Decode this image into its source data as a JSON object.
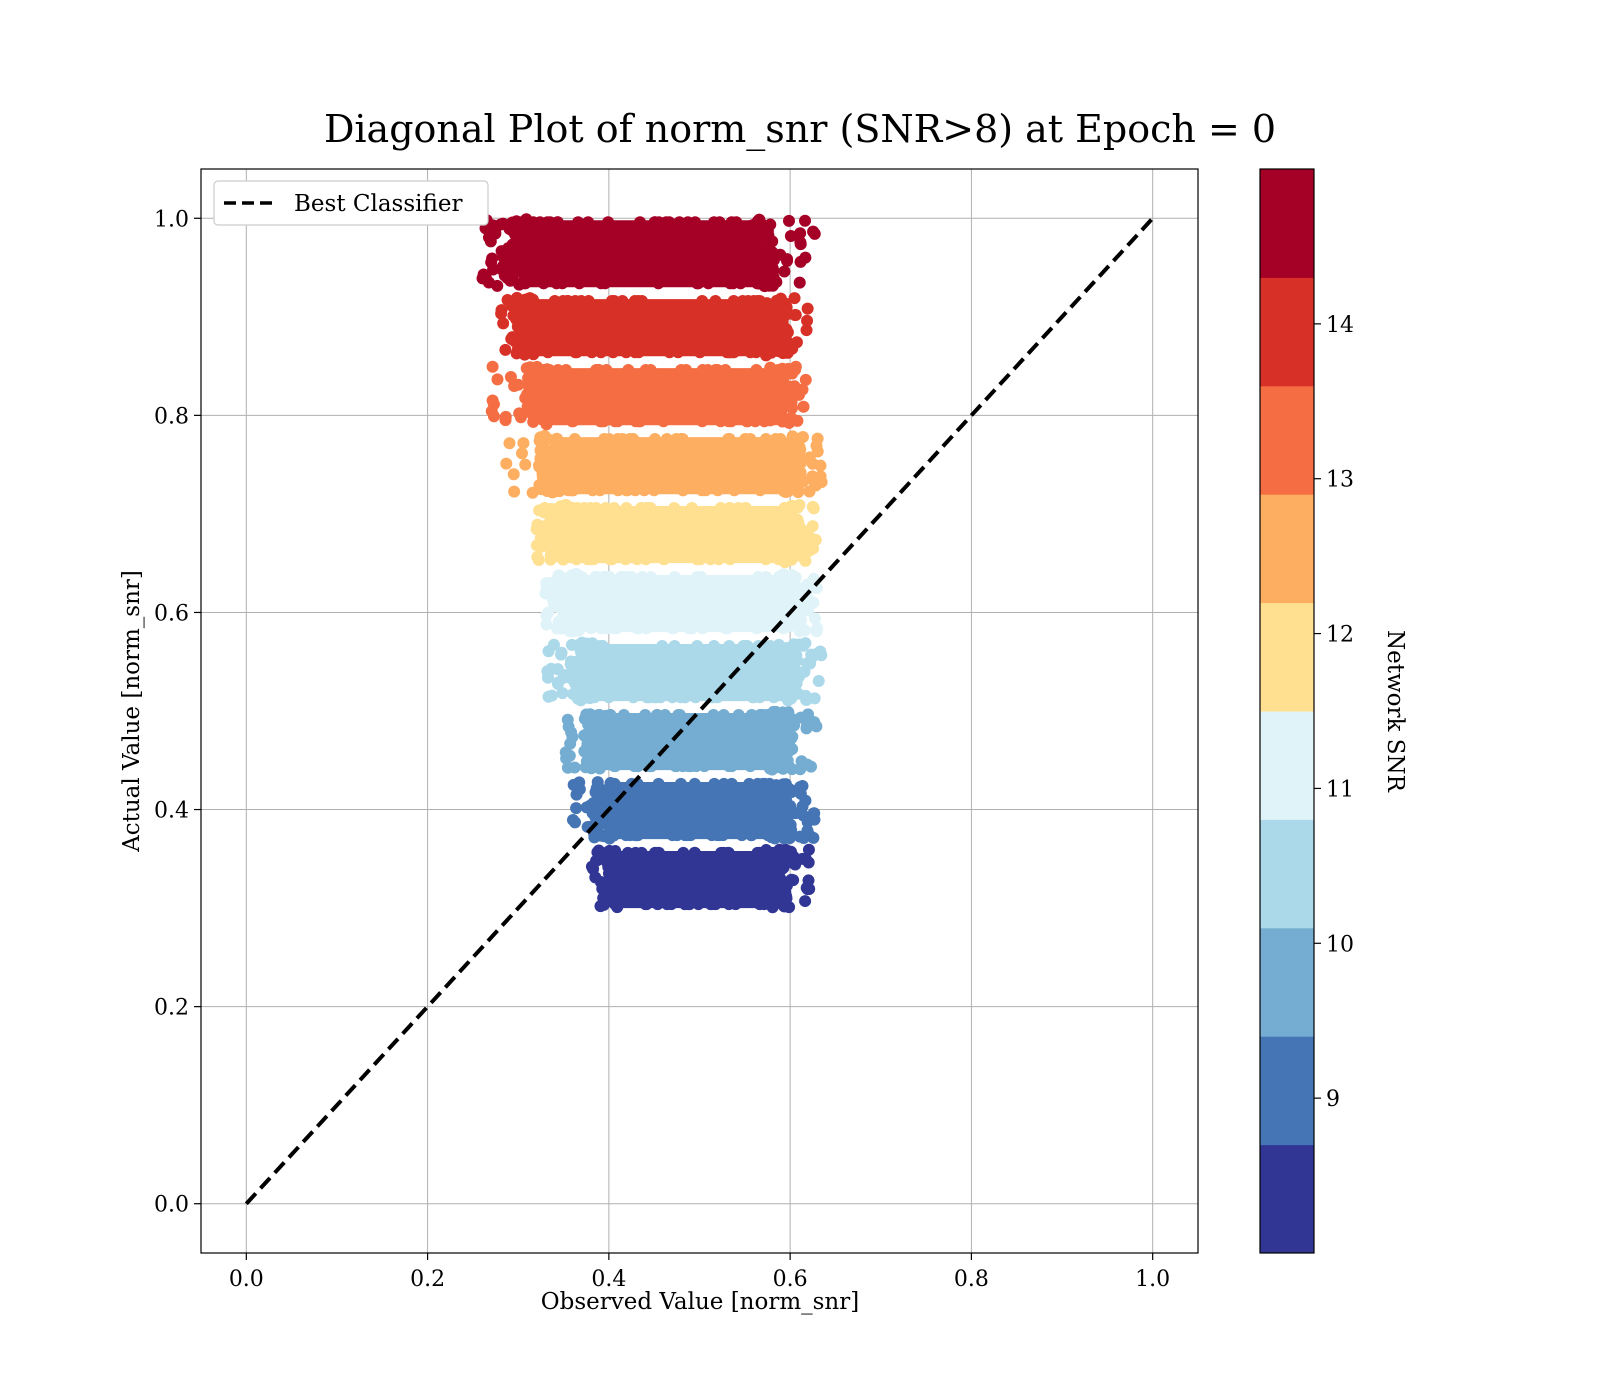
{
  "chart_data": {
    "type": "scatter",
    "title": "Diagonal Plot of norm_snr (SNR>8) at Epoch = 0",
    "xlabel": "Observed Value [norm_snr]",
    "ylabel": "Actual Value [norm_snr]",
    "xlim": [
      -0.05,
      1.05
    ],
    "ylim": [
      -0.05,
      1.05
    ],
    "xticks": [
      "0.0",
      "0.2",
      "0.4",
      "0.6",
      "0.8",
      "1.0"
    ],
    "yticks": [
      "0.0",
      "0.2",
      "0.4",
      "0.6",
      "0.8",
      "1.0"
    ],
    "grid": true,
    "legend": {
      "location": "top-left",
      "entries": [
        "Best Classifier"
      ]
    },
    "diagonal": {
      "name": "Best Classifier",
      "style": "dashed",
      "color": "#000000",
      "x": [
        0,
        1
      ],
      "y": [
        0,
        1
      ]
    },
    "colorbar": {
      "label": "Network SNR",
      "range": [
        8,
        15
      ],
      "ticks": [
        "9",
        "10",
        "11",
        "12",
        "13",
        "14"
      ],
      "colors": [
        "#313695",
        "#4575b4",
        "#74add1",
        "#abd9e9",
        "#e0f3f8",
        "#fee090",
        "#fdae61",
        "#f46d43",
        "#d73027",
        "#a50026"
      ]
    },
    "bands": [
      {
        "color": "#313695",
        "y_range": [
          0.3,
          0.36
        ],
        "x_core": [
          0.405,
          0.585
        ],
        "x_extent": [
          0.38,
          0.63
        ],
        "points": 140
      },
      {
        "color": "#4575b4",
        "y_range": [
          0.37,
          0.43
        ],
        "x_core": [
          0.395,
          0.59
        ],
        "x_extent": [
          0.36,
          0.63
        ],
        "points": 140
      },
      {
        "color": "#74add1",
        "y_range": [
          0.44,
          0.5
        ],
        "x_core": [
          0.385,
          0.59
        ],
        "x_extent": [
          0.35,
          0.63
        ],
        "points": 140
      },
      {
        "color": "#abd9e9",
        "y_range": [
          0.51,
          0.57
        ],
        "x_core": [
          0.37,
          0.595
        ],
        "x_extent": [
          0.33,
          0.635
        ],
        "points": 140
      },
      {
        "color": "#e0f3f8",
        "y_range": [
          0.58,
          0.64
        ],
        "x_core": [
          0.355,
          0.6
        ],
        "x_extent": [
          0.33,
          0.63
        ],
        "points": 140
      },
      {
        "color": "#fee090",
        "y_range": [
          0.65,
          0.71
        ],
        "x_core": [
          0.345,
          0.6
        ],
        "x_extent": [
          0.32,
          0.63
        ],
        "points": 140
      },
      {
        "color": "#fdae61",
        "y_range": [
          0.72,
          0.78
        ],
        "x_core": [
          0.335,
          0.6
        ],
        "x_extent": [
          0.28,
          0.635
        ],
        "points": 140
      },
      {
        "color": "#f46d43",
        "y_range": [
          0.79,
          0.85
        ],
        "x_core": [
          0.32,
          0.59
        ],
        "x_extent": [
          0.27,
          0.62
        ],
        "points": 140
      },
      {
        "color": "#d73027",
        "y_range": [
          0.86,
          0.92
        ],
        "x_core": [
          0.31,
          0.585
        ],
        "x_extent": [
          0.28,
          0.62
        ],
        "points": 140
      },
      {
        "color": "#a50026",
        "y_range": [
          0.93,
          1.0
        ],
        "x_core": [
          0.3,
          0.57
        ],
        "x_extent": [
          0.26,
          0.63
        ],
        "points": 160
      }
    ]
  }
}
